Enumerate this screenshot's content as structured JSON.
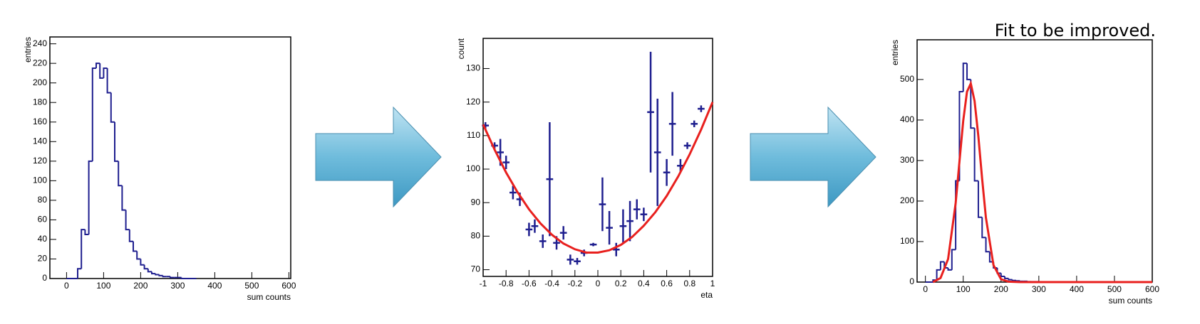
{
  "chart_data": [
    {
      "type": "histogram",
      "x_label": "sum counts",
      "y_label": "entries",
      "color": "#1f1f8f",
      "bins": [
        0,
        10,
        20,
        30,
        40,
        50,
        60,
        70,
        80,
        90,
        100,
        110,
        120,
        130,
        140,
        150,
        160,
        170,
        180,
        190,
        200,
        210,
        220,
        230,
        240,
        250,
        260,
        270,
        280,
        290,
        300,
        310,
        320,
        330,
        340,
        350
      ],
      "counts": [
        0,
        0,
        0,
        10,
        50,
        45,
        120,
        215,
        220,
        205,
        215,
        190,
        160,
        120,
        95,
        70,
        50,
        38,
        28,
        20,
        14,
        10,
        7,
        5,
        4,
        3,
        2,
        2,
        1,
        1,
        1,
        0,
        0,
        0,
        0
      ],
      "xlim": [
        -45,
        605
      ],
      "ylim": [
        0,
        247
      ],
      "xticks": [
        0,
        100,
        200,
        300,
        400,
        500,
        600
      ],
      "yticks": [
        0,
        20,
        40,
        60,
        80,
        100,
        120,
        140,
        160,
        180,
        200,
        220,
        240
      ]
    },
    {
      "type": "scatter",
      "x_label": "eta",
      "y_label": "count",
      "color": "#1f1f8f",
      "x": [
        -0.98,
        -0.9,
        -0.85,
        -0.8,
        -0.74,
        -0.68,
        -0.6,
        -0.55,
        -0.48,
        -0.42,
        -0.36,
        -0.3,
        -0.24,
        -0.18,
        -0.12,
        -0.04,
        0.04,
        0.1,
        0.16,
        0.22,
        0.28,
        0.34,
        0.4,
        0.46,
        0.52,
        0.6,
        0.65,
        0.72,
        0.78,
        0.84,
        0.9
      ],
      "values": [
        113,
        107,
        105,
        102,
        93,
        91,
        82,
        83,
        78.5,
        97,
        78,
        81,
        73,
        72.5,
        75,
        77.5,
        89.5,
        82.5,
        76,
        83,
        84.5,
        88,
        86.5,
        117,
        105,
        99,
        113.5,
        101,
        107,
        113.5,
        118
      ],
      "xerr": [
        0.03,
        0.03,
        0.03,
        0.03,
        0.03,
        0.03,
        0.03,
        0.03,
        0.03,
        0.03,
        0.03,
        0.03,
        0.03,
        0.03,
        0.03,
        0.03,
        0.03,
        0.03,
        0.03,
        0.03,
        0.03,
        0.03,
        0.03,
        0.03,
        0.03,
        0.03,
        0.03,
        0.03,
        0.03,
        0.03,
        0.03
      ],
      "yerr": [
        1,
        1,
        4,
        2,
        2,
        2,
        2,
        2,
        2,
        17,
        2,
        2,
        1.5,
        1,
        1,
        0.5,
        8,
        5,
        2,
        5,
        6,
        3,
        2,
        18,
        16,
        4,
        9.5,
        2,
        1,
        1,
        1
      ],
      "fit": {
        "color": "#e8201e",
        "x": [
          -1,
          -0.9,
          -0.8,
          -0.7,
          -0.6,
          -0.5,
          -0.4,
          -0.3,
          -0.2,
          -0.1,
          0,
          0.1,
          0.2,
          0.3,
          0.4,
          0.5,
          0.6,
          0.7,
          0.8,
          0.9,
          1
        ],
        "values": [
          113.3,
          105.8,
          99,
          93.1,
          88,
          83.8,
          80.4,
          77.8,
          76.1,
          75.1,
          75.1,
          75.8,
          77.4,
          79.8,
          83.1,
          87.1,
          92,
          97.8,
          104.4,
          111.8,
          120
        ]
      },
      "xlim": [
        -1,
        1
      ],
      "ylim": [
        68,
        139
      ],
      "xticks": [
        -1,
        -0.8,
        -0.6,
        -0.4,
        -0.2,
        0,
        0.2,
        0.4,
        0.6,
        0.8,
        1
      ],
      "yticks": [
        70,
        80,
        90,
        100,
        110,
        120,
        130
      ]
    },
    {
      "type": "histogram",
      "x_label": "sum counts",
      "y_label": "entries",
      "color": "#1f1f8f",
      "annotation": "Fit to be improved.",
      "bins": [
        0,
        10,
        20,
        30,
        40,
        50,
        60,
        70,
        80,
        90,
        100,
        110,
        120,
        130,
        140,
        150,
        160,
        170,
        180,
        190,
        200,
        210,
        220,
        230,
        240,
        250,
        260,
        270,
        280,
        290,
        300,
        310,
        320,
        330,
        340,
        350
      ],
      "counts": [
        0,
        0,
        5,
        30,
        50,
        35,
        30,
        80,
        250,
        470,
        540,
        500,
        380,
        250,
        160,
        110,
        75,
        50,
        35,
        22,
        14,
        9,
        6,
        4,
        3,
        2,
        2,
        1,
        1,
        1,
        0,
        0,
        0,
        0,
        0
      ],
      "fit": {
        "color": "#e8201e",
        "x": [
          20,
          40,
          60,
          80,
          90,
          100,
          110,
          120,
          130,
          140,
          150,
          160,
          180,
          200,
          220,
          250,
          300,
          400,
          500,
          600
        ],
        "values": [
          0,
          10,
          57,
          195,
          297,
          398,
          470,
          490,
          447,
          360,
          255,
          159,
          42,
          7,
          1,
          0,
          0,
          0,
          0,
          0
        ]
      },
      "xlim": [
        -22,
        600
      ],
      "ylim": [
        0,
        598
      ],
      "xticks": [
        0,
        100,
        200,
        300,
        400,
        500,
        600
      ],
      "yticks": [
        0,
        100,
        200,
        300,
        400,
        500
      ]
    }
  ]
}
